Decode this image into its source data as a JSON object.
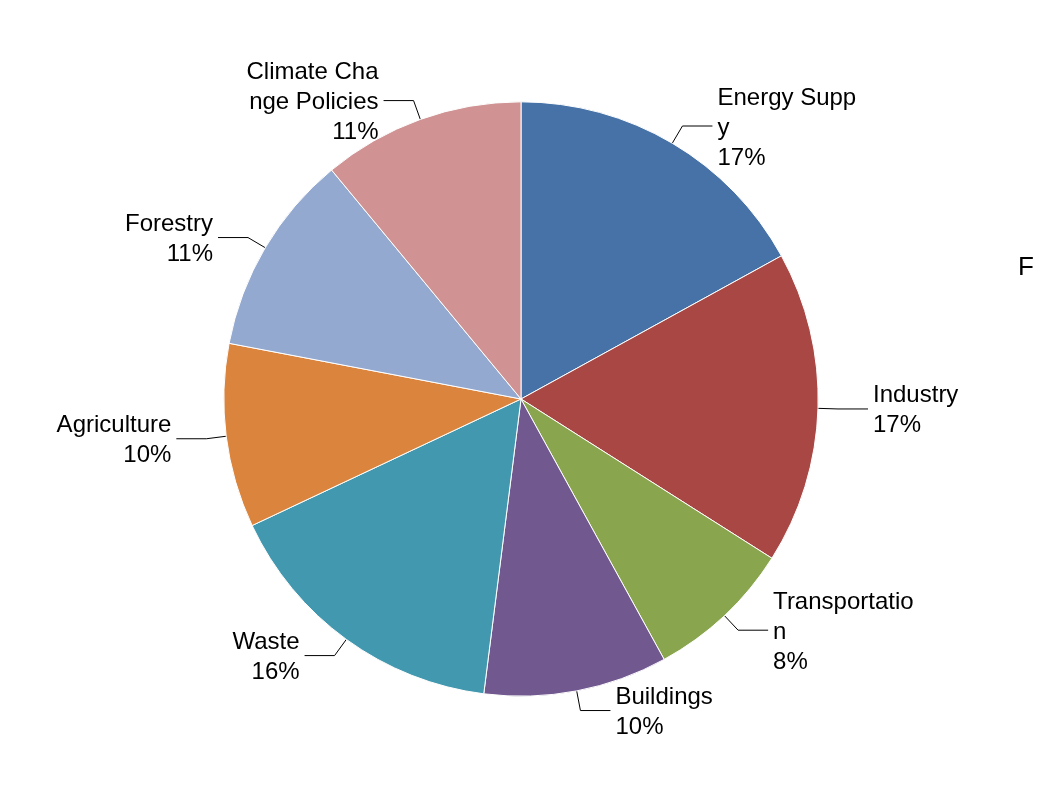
{
  "chart_data": {
    "type": "pie",
    "categories": [
      "Energy Suppy",
      "Industry",
      "Transportation",
      "Buildings",
      "Waste",
      "Agriculture",
      "Forestry",
      "Climate Change Policies"
    ],
    "values": [
      17,
      17,
      8,
      10,
      16,
      10,
      11,
      11
    ],
    "value_labels": [
      "17%",
      "17%",
      "8%",
      "10%",
      "16%",
      "10%",
      "11%",
      "11%"
    ],
    "colors": [
      "#4672a8",
      "#a84744",
      "#89a54e",
      "#71598f",
      "#4298af",
      "#db843d",
      "#93a9cf",
      "#d09292"
    ],
    "annotations": [
      "F"
    ],
    "legend": false
  }
}
